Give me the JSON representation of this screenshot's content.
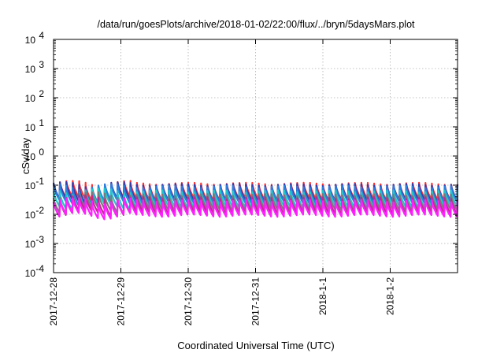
{
  "chart_data": {
    "type": "line",
    "title": "/data/run/goesPlots/archive/2018-01-02/22:00/flux/../bryn/5daysMars.plot",
    "xlabel": "Coordinated Universal Time (UTC)",
    "ylabel": "cSv/day",
    "y_scale": "log",
    "grid": true,
    "ylim_exp": [
      -4,
      4
    ],
    "y_ticks": [
      {
        "base": "10",
        "exp": "-4"
      },
      {
        "base": "10",
        "exp": "-3"
      },
      {
        "base": "10",
        "exp": "-2"
      },
      {
        "base": "10",
        "exp": "-1"
      },
      {
        "base": "10",
        "exp": "0"
      },
      {
        "base": "10",
        "exp": "1"
      },
      {
        "base": "10",
        "exp": "2"
      },
      {
        "base": "10",
        "exp": "3"
      },
      {
        "base": "10",
        "exp": "4"
      }
    ],
    "x_ticks": [
      "2017-12-28",
      "2017-12-29",
      "2017-12-30",
      "2017-12-31",
      "2018-1-1",
      "2018-1-2"
    ],
    "xlim_days": [
      0,
      6.0
    ],
    "cycles_per_day": 10.5,
    "series": [
      {
        "color": "#ff3333",
        "peak": 0.11,
        "trough": 0.032
      },
      {
        "color": "#3a3aa8",
        "peak": 0.1,
        "trough": 0.028
      },
      {
        "color": "#2a7fe0",
        "peak": 0.085,
        "trough": 0.025
      },
      {
        "color": "#1fc9c9",
        "peak": 0.06,
        "trough": 0.018
      },
      {
        "color": "#7a7a7a",
        "peak": 0.045,
        "trough": 0.014
      },
      {
        "color": "#c02890",
        "peak": 0.035,
        "trough": 0.011
      },
      {
        "color": "#ff20ff",
        "peak": 0.028,
        "trough": 0.009
      }
    ]
  }
}
